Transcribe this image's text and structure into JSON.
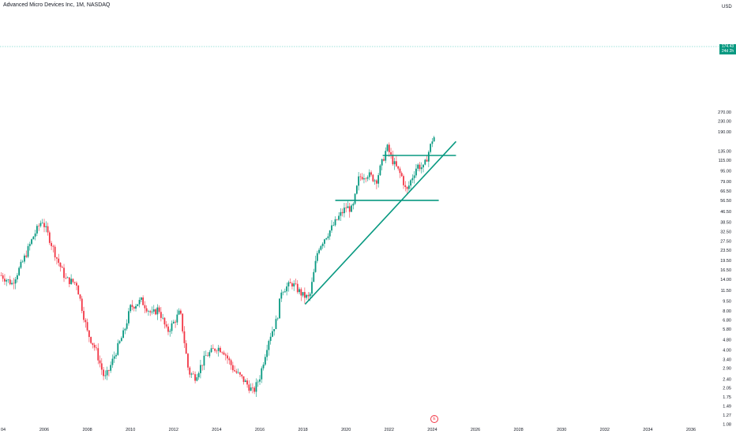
{
  "header": {
    "title": "Advanced Micro Devices Inc, 1M, NASDAQ",
    "currency": "USD"
  },
  "price_badge": {
    "price": "174.43",
    "countdown": "24d 2h"
  },
  "event_marker": {
    "label": "E"
  },
  "colors": {
    "up": "#089981",
    "down": "#f23645",
    "trendline": "#089981",
    "last_price_line": "#80d8cf",
    "axis_text": "#131722"
  },
  "chart_data": {
    "type": "candlestick",
    "title": "Advanced Micro Devices Inc, 1M, NASDAQ",
    "y_scale": "log",
    "y_axis_labels": [
      "270.00",
      "230.00",
      "190.00",
      "135.00",
      "115.00",
      "95.00",
      "79.00",
      "66.50",
      "56.50",
      "46.50",
      "38.50",
      "32.50",
      "27.50",
      "23.50",
      "19.50",
      "16.50",
      "14.00",
      "11.50",
      "9.50",
      "8.00",
      "6.80",
      "5.80",
      "4.80",
      "4.00",
      "3.40",
      "2.90",
      "2.40",
      "2.05",
      "1.75",
      "1.49",
      "1.27",
      "1.08"
    ],
    "x_axis_labels": [
      "04",
      "2006",
      "2008",
      "2010",
      "2012",
      "2014",
      "2016",
      "2018",
      "2020",
      "2022",
      "2024",
      "2026",
      "2028",
      "2030",
      "2032",
      "2034",
      "2036"
    ],
    "last_price": 174.43,
    "x": [
      2004.0,
      2004.5,
      2005.0,
      2005.5,
      2005.9,
      2006.2,
      2006.6,
      2007.0,
      2007.5,
      2008.0,
      2008.4,
      2008.8,
      2009.0,
      2009.3,
      2009.7,
      2010.0,
      2010.5,
      2011.0,
      2011.3,
      2011.7,
      2012.0,
      2012.3,
      2012.7,
      2013.0,
      2013.5,
      2014.0,
      2014.3,
      2014.8,
      2015.0,
      2015.3,
      2015.7,
      2016.0,
      2016.4,
      2016.8,
      2017.0,
      2017.5,
      2018.0,
      2018.3,
      2018.7,
      2019.0,
      2019.3,
      2019.7,
      2020.0,
      2020.3,
      2020.6,
      2021.0,
      2021.4,
      2021.9,
      2022.2,
      2022.6,
      2022.8,
      2023.0,
      2023.3,
      2023.6,
      2023.9,
      2024.0,
      2024.1
    ],
    "close": [
      15,
      13,
      19,
      30,
      40,
      30,
      20,
      14,
      13,
      5.5,
      4,
      2.4,
      2.8,
      3.8,
      5.5,
      8.5,
      9.6,
      7.5,
      8.4,
      5.5,
      6.5,
      7.9,
      2.7,
      2.5,
      3.6,
      4.2,
      4.0,
      2.8,
      2.6,
      2.3,
      1.9,
      2.5,
      4.8,
      6.9,
      11.5,
      13,
      10.5,
      10,
      24,
      29,
      34,
      43,
      50,
      48,
      85,
      90,
      80,
      145,
      110,
      85,
      65,
      80,
      105,
      100,
      145,
      165,
      174.43
    ],
    "trendlines": [
      {
        "from": [
          2018.1,
          9.0
        ],
        "to": [
          2025.1,
          160
        ]
      },
      {
        "from": [
          2021.7,
          125
        ],
        "to": [
          2025.1,
          125
        ]
      },
      {
        "from": [
          2019.5,
          56.5
        ],
        "to": [
          2024.3,
          56.5
        ]
      }
    ]
  }
}
